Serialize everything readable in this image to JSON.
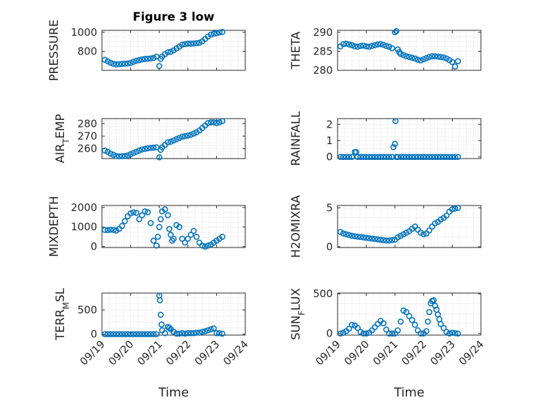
{
  "figure": {
    "title": "Figure 3 low",
    "marker_color": "#0072BD",
    "xlabel": "Time",
    "xticklabels": [
      "09/19",
      "09/20",
      "09/21",
      "09/22",
      "09/23",
      "09/24"
    ]
  },
  "chart_data": [
    {
      "type": "scatter",
      "ylabel": "PRESSURE",
      "xlim": [
        19,
        24
      ],
      "ylim": [
        600,
        1020
      ],
      "yticks": [
        800,
        1000
      ],
      "yticklabels": [
        "800",
        "1000"
      ],
      "grid": true,
      "x": [
        19.1,
        19.2,
        19.3,
        19.4,
        19.5,
        19.6,
        19.7,
        19.8,
        19.9,
        20.0,
        20.1,
        20.2,
        20.3,
        20.4,
        20.5,
        20.6,
        20.7,
        20.8,
        20.9,
        21.0,
        21.05,
        21.1,
        21.2,
        21.3,
        21.4,
        21.5,
        21.6,
        21.7,
        21.8,
        21.9,
        22.0,
        22.1,
        22.2,
        22.3,
        22.4,
        22.5,
        22.6,
        22.7,
        22.8,
        22.9,
        23.0,
        23.1,
        23.2
      ],
      "y": [
        710,
        695,
        680,
        668,
        662,
        664,
        667,
        670,
        672,
        678,
        690,
        700,
        708,
        715,
        720,
        722,
        725,
        730,
        745,
        645,
        720,
        745,
        770,
        790,
        795,
        810,
        830,
        850,
        870,
        875,
        880,
        880,
        882,
        885,
        890,
        905,
        930,
        955,
        975,
        985,
        990,
        998,
        1003
      ]
    },
    {
      "type": "scatter",
      "ylabel": "THETA",
      "xlim": [
        19,
        24
      ],
      "ylim": [
        280,
        290.5
      ],
      "yticks": [
        280,
        285,
        290
      ],
      "yticklabels": [
        "280",
        "285",
        "290"
      ],
      "grid": true,
      "x": [
        19.1,
        19.2,
        19.3,
        19.4,
        19.5,
        19.6,
        19.7,
        19.8,
        19.9,
        20.0,
        20.1,
        20.2,
        20.3,
        20.4,
        20.5,
        20.6,
        20.7,
        20.8,
        20.9,
        21.0,
        21.05,
        21.1,
        21.15,
        21.2,
        21.3,
        21.4,
        21.5,
        21.6,
        21.7,
        21.8,
        21.9,
        22.0,
        22.1,
        22.2,
        22.3,
        22.4,
        22.5,
        22.6,
        22.7,
        22.8,
        22.9,
        23.0,
        23.1,
        23.2
      ],
      "y": [
        286.3,
        286.9,
        287.0,
        286.8,
        286.6,
        286.3,
        286.2,
        286.4,
        286.5,
        286.3,
        286.2,
        286.4,
        286.6,
        286.8,
        286.9,
        286.7,
        286.4,
        286.2,
        285.8,
        290.0,
        290.3,
        285.5,
        284.8,
        284.3,
        284.0,
        283.7,
        283.5,
        283.3,
        283.1,
        282.8,
        282.6,
        282.9,
        283.2,
        283.5,
        283.7,
        283.7,
        283.6,
        283.5,
        283.4,
        283.1,
        282.7,
        282.2,
        281.0,
        282.4
      ]
    },
    {
      "type": "scatter",
      "ylabel": "AIR_TEMP",
      "xlim": [
        19,
        24
      ],
      "ylim": [
        252,
        284
      ],
      "yticks": [
        260,
        270,
        280
      ],
      "yticklabels": [
        "260",
        "270",
        "280"
      ],
      "grid": true,
      "x": [
        19.1,
        19.2,
        19.3,
        19.4,
        19.5,
        19.6,
        19.7,
        19.8,
        19.9,
        20.0,
        20.1,
        20.2,
        20.3,
        20.4,
        20.5,
        20.6,
        20.7,
        20.8,
        20.9,
        21.0,
        21.05,
        21.1,
        21.2,
        21.3,
        21.4,
        21.5,
        21.6,
        21.7,
        21.8,
        21.9,
        22.0,
        22.1,
        22.2,
        22.3,
        22.4,
        22.5,
        22.6,
        22.7,
        22.8,
        22.9,
        23.0,
        23.1,
        23.2
      ],
      "y": [
        258.5,
        257.5,
        256.0,
        255.0,
        254.0,
        253.8,
        254.0,
        254.0,
        254.5,
        255.5,
        256.5,
        257.5,
        258.5,
        259.3,
        259.8,
        260.3,
        260.6,
        260.8,
        261.0,
        253.0,
        259.0,
        261.0,
        263.0,
        265.0,
        265.5,
        266.5,
        267.5,
        268.5,
        269.5,
        270.0,
        270.5,
        271.0,
        272.0,
        273.0,
        274.5,
        276.5,
        278.5,
        280.5,
        281.0,
        281.0,
        280.5,
        281.0,
        282.0
      ]
    },
    {
      "type": "scatter",
      "ylabel": "RAINFALL",
      "xlim": [
        19,
        24
      ],
      "ylim": [
        -0.1,
        2.35
      ],
      "yticks": [
        0,
        1,
        2
      ],
      "yticklabels": [
        "0",
        "1",
        "2"
      ],
      "grid": true,
      "x": [
        19.1,
        19.2,
        19.3,
        19.4,
        19.5,
        19.6,
        19.65,
        19.7,
        19.8,
        19.9,
        20.0,
        20.1,
        20.2,
        20.3,
        20.4,
        20.5,
        20.6,
        20.7,
        20.8,
        20.9,
        20.95,
        21.0,
        21.02,
        21.05,
        21.1,
        21.2,
        21.3,
        21.4,
        21.5,
        21.6,
        21.7,
        21.8,
        21.9,
        22.0,
        22.1,
        22.2,
        22.3,
        22.4,
        22.5,
        22.6,
        22.7,
        22.8,
        22.9,
        23.0,
        23.1,
        23.2
      ],
      "y": [
        0,
        0,
        0,
        0,
        0,
        0.3,
        0.3,
        0,
        0,
        0,
        0,
        0,
        0,
        0,
        0,
        0,
        0,
        0,
        0,
        0,
        0.6,
        0.8,
        2.2,
        0,
        0,
        0,
        0,
        0,
        0,
        0,
        0,
        0,
        0,
        0,
        0,
        0,
        0,
        0,
        0,
        0,
        0,
        0,
        0,
        0,
        0,
        0
      ]
    },
    {
      "type": "scatter",
      "ylabel": "MIXDEPTH",
      "xlim": [
        19,
        24
      ],
      "ylim": [
        -50,
        2100
      ],
      "yticks": [
        0,
        1000,
        2000
      ],
      "yticklabels": [
        "0",
        "1000",
        "2000"
      ],
      "grid": true,
      "x": [
        19.1,
        19.2,
        19.3,
        19.4,
        19.5,
        19.6,
        19.7,
        19.8,
        19.9,
        20.0,
        20.1,
        20.2,
        20.3,
        20.4,
        20.5,
        20.6,
        20.7,
        20.8,
        20.9,
        20.95,
        21.0,
        21.05,
        21.1,
        21.2,
        21.3,
        21.35,
        21.4,
        21.45,
        21.5,
        21.6,
        21.7,
        21.8,
        21.9,
        22.0,
        22.1,
        22.2,
        22.3,
        22.4,
        22.5,
        22.6,
        22.7,
        22.8,
        22.9,
        23.0,
        23.1,
        23.2
      ],
      "y": [
        850,
        840,
        860,
        850,
        820,
        900,
        1050,
        1300,
        1550,
        1700,
        1750,
        1720,
        1400,
        1600,
        1800,
        1750,
        1200,
        300,
        50,
        500,
        1000,
        1400,
        1800,
        1900,
        1600,
        900,
        600,
        300,
        400,
        1100,
        1000,
        400,
        200,
        400,
        600,
        800,
        500,
        200,
        50,
        0,
        50,
        100,
        200,
        300,
        400,
        500
      ]
    },
    {
      "type": "scatter",
      "ylabel": "H2OMIXRA",
      "xlim": [
        19,
        24
      ],
      "ylim": [
        -0.1,
        5.3
      ],
      "yticks": [
        0,
        5
      ],
      "yticklabels": [
        "0",
        "5"
      ],
      "grid": true,
      "x": [
        19.1,
        19.2,
        19.3,
        19.4,
        19.5,
        19.6,
        19.7,
        19.8,
        19.9,
        20.0,
        20.1,
        20.2,
        20.3,
        20.4,
        20.5,
        20.6,
        20.7,
        20.8,
        20.9,
        21.0,
        21.1,
        21.2,
        21.3,
        21.4,
        21.5,
        21.6,
        21.7,
        21.8,
        21.9,
        22.0,
        22.1,
        22.2,
        22.3,
        22.4,
        22.5,
        22.6,
        22.7,
        22.8,
        22.9,
        23.0,
        23.1,
        23.2
      ],
      "y": [
        1.9,
        1.7,
        1.6,
        1.5,
        1.4,
        1.35,
        1.3,
        1.25,
        1.2,
        1.15,
        1.1,
        1.05,
        1.0,
        0.95,
        0.9,
        0.85,
        0.8,
        0.8,
        0.85,
        0.9,
        1.2,
        1.4,
        1.6,
        1.8,
        2.0,
        2.3,
        2.6,
        2.2,
        1.8,
        1.6,
        1.7,
        2.1,
        2.6,
        3.0,
        3.2,
        3.5,
        3.7,
        4.0,
        4.5,
        4.8,
        4.9,
        5.0
      ]
    },
    {
      "type": "scatter",
      "ylabel": "TERR_MSL",
      "xlim": [
        19,
        24
      ],
      "ylim": [
        -20,
        850
      ],
      "yticks": [
        0,
        500
      ],
      "yticklabels": [
        "0",
        "500"
      ],
      "grid": true,
      "x": [
        19.1,
        19.2,
        19.3,
        19.4,
        19.5,
        19.6,
        19.7,
        19.8,
        19.9,
        20.0,
        20.1,
        20.2,
        20.3,
        20.4,
        20.5,
        20.6,
        20.7,
        20.8,
        20.9,
        21.0,
        21.02,
        21.05,
        21.08,
        21.1,
        21.2,
        21.3,
        21.35,
        21.4,
        21.5,
        21.6,
        21.7,
        21.8,
        21.9,
        22.0,
        22.1,
        22.2,
        22.3,
        22.4,
        22.5,
        22.6,
        22.7,
        22.8,
        22.9,
        23.0,
        23.1,
        23.2
      ],
      "y": [
        0,
        0,
        0,
        0,
        0,
        0,
        0,
        0,
        0,
        0,
        0,
        0,
        0,
        0,
        0,
        0,
        0,
        0,
        0,
        800,
        700,
        400,
        200,
        80,
        20,
        150,
        130,
        100,
        50,
        10,
        10,
        20,
        10,
        20,
        20,
        20,
        30,
        30,
        50,
        60,
        80,
        100,
        120,
        20,
        20,
        10
      ]
    },
    {
      "type": "scatter",
      "ylabel": "SUN_FLUX",
      "xlim": [
        19,
        24
      ],
      "ylim": [
        -20,
        510
      ],
      "yticks": [
        0,
        500
      ],
      "yticklabels": [
        "0",
        "500"
      ],
      "grid": true,
      "x": [
        19.1,
        19.2,
        19.3,
        19.4,
        19.5,
        19.6,
        19.7,
        19.8,
        19.9,
        20.0,
        20.1,
        20.2,
        20.3,
        20.4,
        20.5,
        20.6,
        20.7,
        20.8,
        20.9,
        21.0,
        21.1,
        21.2,
        21.3,
        21.4,
        21.5,
        21.6,
        21.7,
        21.8,
        21.9,
        22.0,
        22.1,
        22.15,
        22.2,
        22.25,
        22.3,
        22.35,
        22.4,
        22.45,
        22.5,
        22.55,
        22.6,
        22.7,
        22.8,
        22.9,
        23.0,
        23.1,
        23.2
      ],
      "y": [
        0,
        10,
        30,
        60,
        110,
        100,
        70,
        20,
        0,
        0,
        10,
        40,
        80,
        120,
        160,
        130,
        50,
        0,
        0,
        0,
        40,
        150,
        290,
        270,
        220,
        170,
        110,
        40,
        0,
        0,
        30,
        150,
        270,
        380,
        410,
        420,
        350,
        300,
        240,
        180,
        120,
        70,
        20,
        0,
        10,
        5,
        0
      ]
    }
  ]
}
